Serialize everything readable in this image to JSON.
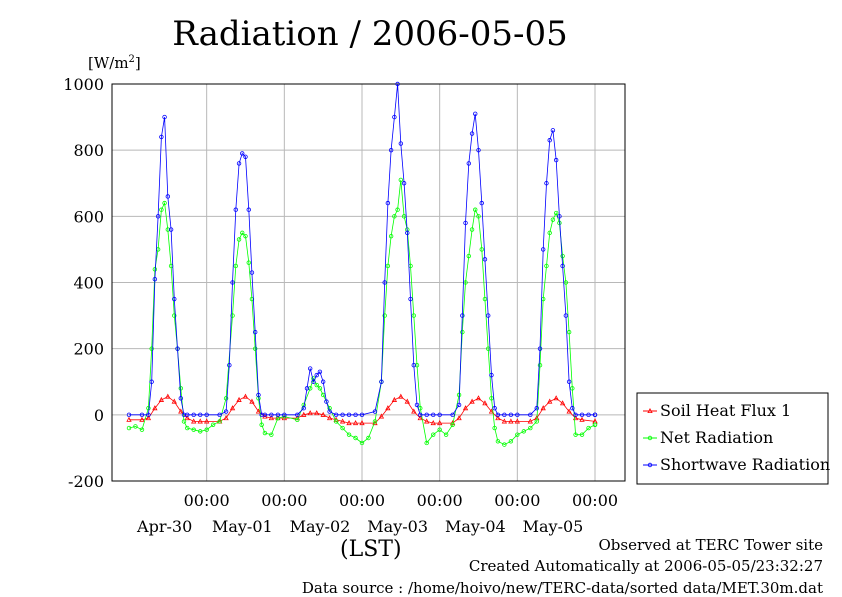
{
  "title": "Radiation / 2006-05-05",
  "unit_base": "[W/m",
  "unit_sup": "2",
  "unit_close": "]",
  "footer": {
    "line1": "Observed at TERC Tower site",
    "line2": "Created Automatically at 2006-05-05/23:32:27",
    "line3": "Data source : /home/hoivo/new/TERC-data/sorted  data/MET.30m.dat"
  },
  "chart_data": {
    "type": "line",
    "title": "Radiation / 2006-05-05",
    "xlabel": "(LST)",
    "ylabel": "[W/m2]",
    "ylim": [
      -200,
      1000
    ],
    "yticks": [
      "1000",
      "800",
      "600",
      "400",
      "200",
      "0",
      "-200"
    ],
    "ytick_values": [
      1000,
      800,
      600,
      400,
      200,
      0,
      -200
    ],
    "xlim": [
      0,
      6
    ],
    "xticks": [
      {
        "x": 1,
        "time": "00:00",
        "date": "Apr-30"
      },
      {
        "x": 2,
        "time": "00:00",
        "date": "May-01"
      },
      {
        "x": 3,
        "time": "00:00",
        "date": "May-02"
      },
      {
        "x": 4,
        "time": "00:00",
        "date": "May-03"
      },
      {
        "x": 5,
        "time": "00:00",
        "date": "May-04"
      },
      {
        "x": 6,
        "time": "00:00",
        "date": "May-05"
      }
    ],
    "grid": true,
    "legend_position": "right",
    "series": [
      {
        "name": "Soil Heat Flux 1",
        "color": "#ff0000",
        "marker": "triangle",
        "x": [
          0.0,
          0.167,
          0.25,
          0.333,
          0.417,
          0.5,
          0.583,
          0.667,
          0.75,
          0.833,
          0.917,
          1.0,
          1.167,
          1.25,
          1.333,
          1.417,
          1.5,
          1.583,
          1.667,
          1.75,
          1.833,
          1.917,
          2.0,
          2.167,
          2.25,
          2.333,
          2.417,
          2.5,
          2.583,
          2.667,
          2.75,
          2.833,
          2.917,
          3.0,
          3.167,
          3.25,
          3.333,
          3.417,
          3.5,
          3.583,
          3.667,
          3.75,
          3.833,
          3.917,
          4.0,
          4.167,
          4.25,
          4.333,
          4.417,
          4.5,
          4.583,
          4.667,
          4.75,
          4.833,
          4.917,
          5.0,
          5.167,
          5.25,
          5.333,
          5.417,
          5.5,
          5.583,
          5.667,
          5.75,
          5.833,
          6.0,
          6.0
        ],
        "y": [
          -15,
          -15,
          -10,
          20,
          45,
          55,
          40,
          10,
          -10,
          -20,
          -20,
          -20,
          -20,
          -10,
          20,
          45,
          55,
          40,
          10,
          -5,
          -10,
          -10,
          -10,
          -10,
          0,
          5,
          5,
          0,
          -10,
          -15,
          -20,
          -25,
          -25,
          -25,
          -25,
          -5,
          20,
          45,
          55,
          40,
          10,
          -10,
          -20,
          -25,
          -25,
          -25,
          -10,
          20,
          40,
          50,
          35,
          10,
          -10,
          -20,
          -20,
          -20,
          -20,
          -10,
          20,
          40,
          50,
          35,
          10,
          -10,
          -15,
          -20,
          -20
        ]
      },
      {
        "name": "Net Radiation",
        "color": "#00ff00",
        "marker": "circle",
        "x": [
          0.0,
          0.083,
          0.167,
          0.25,
          0.292,
          0.333,
          0.375,
          0.417,
          0.458,
          0.5,
          0.542,
          0.583,
          0.625,
          0.667,
          0.708,
          0.75,
          0.833,
          0.917,
          1.0,
          1.083,
          1.167,
          1.25,
          1.333,
          1.375,
          1.417,
          1.458,
          1.5,
          1.542,
          1.583,
          1.625,
          1.667,
          1.708,
          1.75,
          1.833,
          1.917,
          2.0,
          2.167,
          2.25,
          2.333,
          2.375,
          2.417,
          2.458,
          2.5,
          2.583,
          2.667,
          2.75,
          2.833,
          2.917,
          3.0,
          3.083,
          3.167,
          3.25,
          3.292,
          3.333,
          3.375,
          3.417,
          3.458,
          3.5,
          3.542,
          3.583,
          3.625,
          3.667,
          3.708,
          3.75,
          3.833,
          3.917,
          4.0,
          4.083,
          4.167,
          4.25,
          4.292,
          4.333,
          4.375,
          4.417,
          4.458,
          4.5,
          4.542,
          4.583,
          4.625,
          4.667,
          4.708,
          4.75,
          4.833,
          4.917,
          5.0,
          5.083,
          5.167,
          5.25,
          5.292,
          5.333,
          5.375,
          5.417,
          5.458,
          5.5,
          5.542,
          5.583,
          5.625,
          5.667,
          5.708,
          5.75,
          5.833,
          5.917,
          6.0,
          6.0
        ],
        "y": [
          -40,
          -35,
          -45,
          20,
          200,
          440,
          500,
          620,
          640,
          560,
          450,
          300,
          200,
          80,
          -20,
          -40,
          -45,
          -50,
          -45,
          -30,
          -20,
          50,
          300,
          450,
          530,
          550,
          540,
          460,
          350,
          200,
          50,
          -30,
          -55,
          -60,
          -10,
          -5,
          -15,
          30,
          80,
          110,
          90,
          80,
          60,
          20,
          -20,
          -40,
          -60,
          -70,
          -85,
          -70,
          -20,
          100,
          300,
          450,
          540,
          600,
          620,
          710,
          600,
          560,
          450,
          300,
          150,
          20,
          -85,
          -60,
          -45,
          -60,
          -30,
          60,
          250,
          400,
          480,
          560,
          620,
          600,
          500,
          350,
          200,
          50,
          -40,
          -80,
          -90,
          -80,
          -60,
          -50,
          -40,
          -20,
          150,
          350,
          450,
          550,
          590,
          610,
          580,
          480,
          400,
          250,
          80,
          -60,
          -60,
          -40,
          -30,
          -30
        ]
      },
      {
        "name": "Shortwave Radiation",
        "color": "#0000ff",
        "marker": "circle",
        "x": [
          0.0,
          0.167,
          0.25,
          0.292,
          0.333,
          0.375,
          0.417,
          0.458,
          0.5,
          0.542,
          0.583,
          0.625,
          0.667,
          0.708,
          0.75,
          0.833,
          0.917,
          1.0,
          1.167,
          1.25,
          1.292,
          1.333,
          1.375,
          1.417,
          1.458,
          1.5,
          1.542,
          1.583,
          1.625,
          1.667,
          1.708,
          1.75,
          1.833,
          1.917,
          2.0,
          2.167,
          2.25,
          2.292,
          2.333,
          2.375,
          2.417,
          2.458,
          2.5,
          2.542,
          2.583,
          2.667,
          2.75,
          2.833,
          2.917,
          3.0,
          3.167,
          3.25,
          3.292,
          3.333,
          3.375,
          3.417,
          3.458,
          3.5,
          3.542,
          3.583,
          3.625,
          3.667,
          3.708,
          3.75,
          3.833,
          3.917,
          4.0,
          4.167,
          4.25,
          4.292,
          4.333,
          4.375,
          4.417,
          4.458,
          4.5,
          4.542,
          4.583,
          4.625,
          4.667,
          4.708,
          4.75,
          4.833,
          4.917,
          5.0,
          5.167,
          5.25,
          5.292,
          5.333,
          5.375,
          5.417,
          5.458,
          5.5,
          5.542,
          5.583,
          5.625,
          5.667,
          5.708,
          5.75,
          5.833,
          5.917,
          6.0,
          6.0
        ],
        "y": [
          0,
          0,
          0,
          100,
          410,
          600,
          840,
          900,
          660,
          560,
          350,
          200,
          50,
          0,
          0,
          0,
          0,
          0,
          0,
          10,
          150,
          400,
          620,
          760,
          790,
          780,
          620,
          430,
          250,
          60,
          0,
          0,
          0,
          0,
          0,
          0,
          20,
          80,
          140,
          100,
          120,
          130,
          100,
          40,
          10,
          0,
          0,
          0,
          0,
          0,
          10,
          100,
          400,
          640,
          800,
          900,
          1000,
          820,
          700,
          550,
          350,
          150,
          30,
          0,
          0,
          0,
          0,
          0,
          30,
          300,
          580,
          760,
          850,
          910,
          800,
          640,
          470,
          300,
          120,
          20,
          0,
          0,
          0,
          0,
          0,
          20,
          200,
          500,
          700,
          830,
          860,
          770,
          600,
          450,
          300,
          100,
          20,
          0,
          0,
          0,
          0,
          0
        ]
      }
    ]
  }
}
